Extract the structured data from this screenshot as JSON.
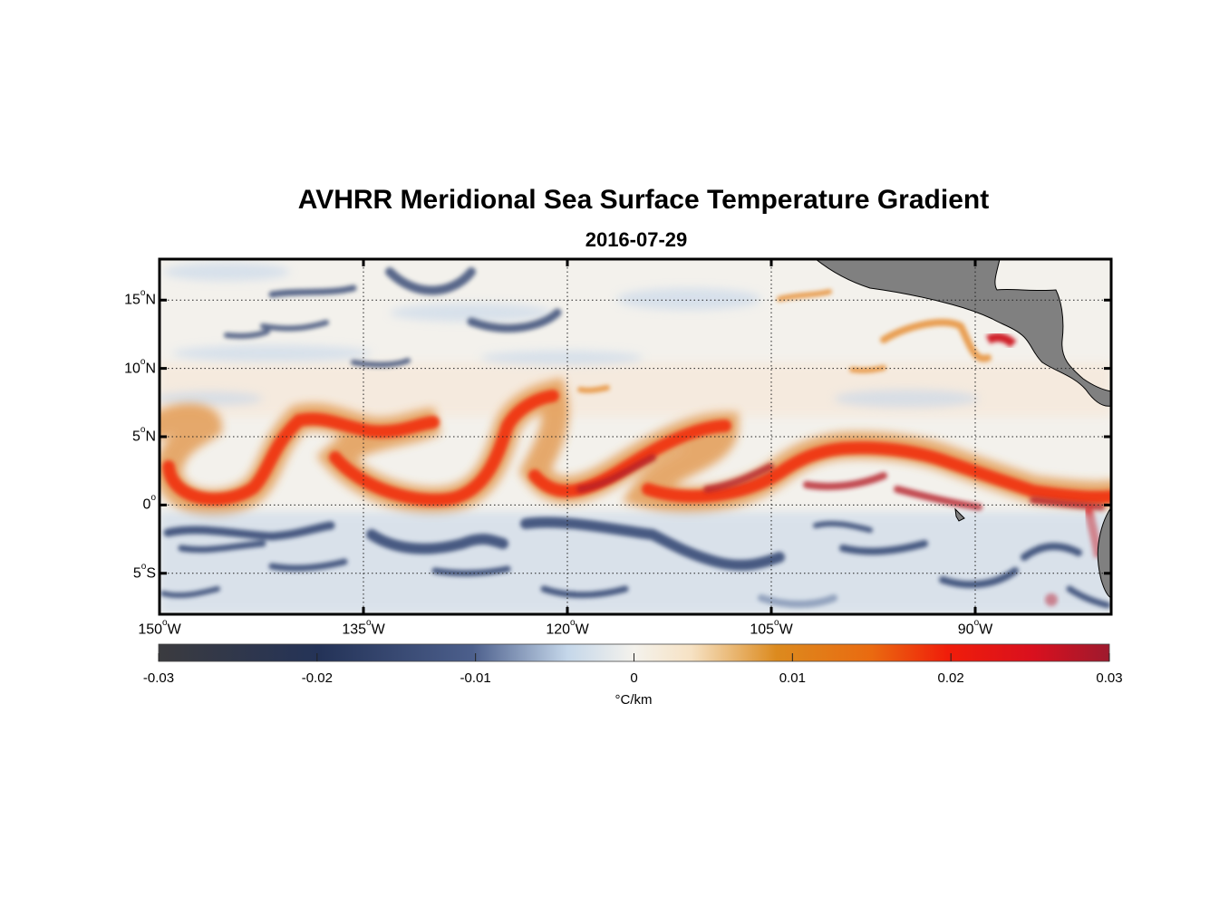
{
  "title": "AVHRR Meridional Sea Surface Temperature Gradient",
  "subtitle": "2016-07-29",
  "map": {
    "lon_range": [
      -150,
      -80
    ],
    "lat_range": [
      -8,
      18
    ],
    "lat_ticks": [
      {
        "value": 15,
        "num": "15",
        "hemi": "N"
      },
      {
        "value": 10,
        "num": "10",
        "hemi": "N"
      },
      {
        "value": 5,
        "num": "5",
        "hemi": "N"
      },
      {
        "value": 0,
        "num": "0",
        "hemi": ""
      },
      {
        "value": -5,
        "num": "5",
        "hemi": "S"
      }
    ],
    "lon_ticks": [
      {
        "value": -150,
        "num": "150",
        "hemi": "W"
      },
      {
        "value": -135,
        "num": "135",
        "hemi": "W"
      },
      {
        "value": -120,
        "num": "120",
        "hemi": "W"
      },
      {
        "value": -105,
        "num": "105",
        "hemi": "W"
      },
      {
        "value": -90,
        "num": "90",
        "hemi": "W"
      }
    ],
    "land_color": "#808080",
    "grid": "dotted"
  },
  "colorbar": {
    "min": -0.03,
    "max": 0.03,
    "tick_labels": [
      "-0.03",
      "-0.02",
      "-0.01",
      "0",
      "0.01",
      "0.02",
      "0.03"
    ],
    "unit": "°C/km",
    "colors": [
      "#3b3b3f",
      "#243358",
      "#4c5f8c",
      "#c5d7ea",
      "#f4f2ec",
      "#f6e2c4",
      "#dc8a1e",
      "#ea6a10",
      "#f01d0a",
      "#d9101e",
      "#9e1a2e"
    ]
  }
}
